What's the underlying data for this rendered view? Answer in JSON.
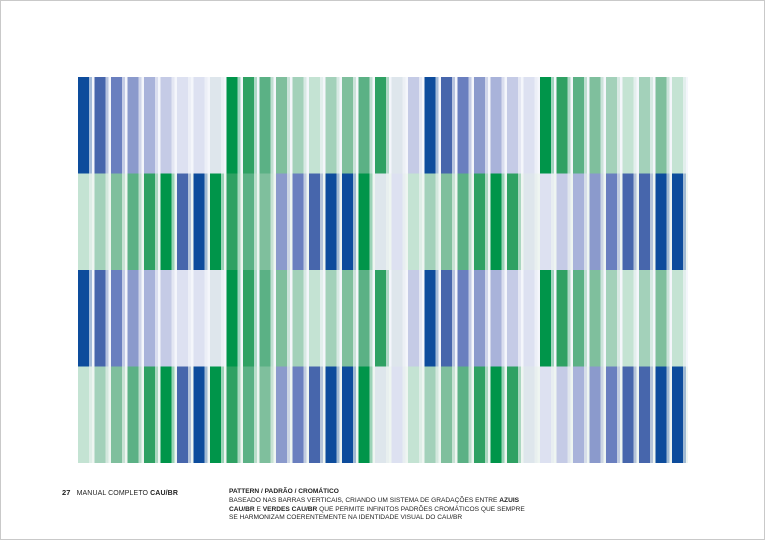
{
  "footer": {
    "page_number": "27",
    "manual_label": "MANUAL COMPLETO",
    "brand": "CAU/BR",
    "title": "PATTERN / PADRÃO / CROMÁTICO",
    "desc_part1": "BASEADO NAS BARRAS VERTICAIS, CRIANDO UM SISTEMA DE GRADAÇÕES ENTRE ",
    "desc_blue": "AZUIS CAU/BR",
    "desc_part2": " E ",
    "desc_green": "VERDES CAU/BR",
    "desc_part3": " QUE PERMITE INFINITOS PADRÕES CROMÁTICOS QUE SEMPRE SE HARMONIZAM COERENTEMENTE NA IDENTIDADE VISUAL DO CAU/BR"
  },
  "colors": {
    "blue_dark": "#0d4c9c",
    "blue_1": "#4766ac",
    "blue_2": "#6a7fbf",
    "blue_3": "#8b9acc",
    "blue_4": "#a9b3da",
    "blue_5": "#c5cbe6",
    "blue_6": "#dde1f1",
    "green_dark": "#00954a",
    "green_1": "#2fa163",
    "green_2": "#5bb185",
    "green_3": "#7fbf9d",
    "green_4": "#a3d1ba",
    "green_5": "#c4e3d3",
    "gray_light": "#dee6ec"
  }
}
